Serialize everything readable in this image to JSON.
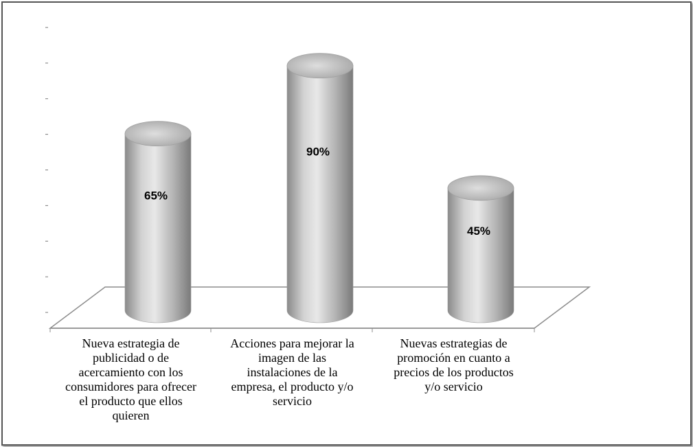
{
  "chart_data": {
    "type": "bar",
    "style": "3d-cylinder",
    "categories": [
      "Nueva estrategia de publicidad o de acercamiento con los consumidores para ofrecer el producto que ellos quieren",
      "Acciones para mejorar la imagen de las instalaciones de la empresa, el  producto y/o servicio",
      "Nuevas estrategias de promoción  en cuanto a precios de los productos y/o servicio"
    ],
    "category_label_lines": [
      [
        "Nueva estrategia de",
        "publicidad o de",
        "acercamiento con los",
        "consumidores para ofrecer",
        "el producto que ellos",
        "quieren"
      ],
      [
        "Acciones para mejorar la",
        "imagen de las",
        "instalaciones de la",
        "empresa, el  producto y/o",
        "servicio"
      ],
      [
        "Nuevas estrategias de",
        "promoción  en cuanto a",
        "precios de los productos",
        "y/o servicio"
      ]
    ],
    "values": [
      65,
      90,
      45
    ],
    "data_labels": [
      "65%",
      "90%",
      "45%"
    ],
    "ylim": [
      0,
      100
    ],
    "colors": {
      "cylinder_light": "#e6e6e6",
      "cylinder_mid": "#b4b4b4",
      "cylinder_dark": "#7a7a7a",
      "floor": "#ffffff",
      "floor_edge": "#8c8c8c"
    },
    "grid": false,
    "legend": "none"
  }
}
